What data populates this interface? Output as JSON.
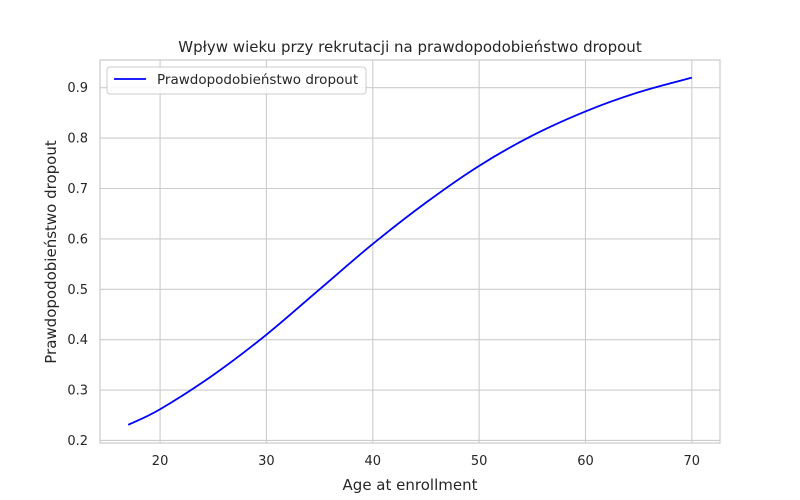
{
  "chart_data": {
    "type": "line",
    "title": "Wpływ wieku przy rekrutacji na prawdopodobieństwo dropout",
    "xlabel": "Age at enrollment",
    "ylabel": "Prawdopodobieństwo dropout",
    "xlim": [
      14.35,
      72.65
    ],
    "ylim": [
      0.195,
      0.955
    ],
    "xticks": [
      20,
      30,
      40,
      50,
      60,
      70
    ],
    "yticks": [
      0.2,
      0.3,
      0.4,
      0.5,
      0.6,
      0.7,
      0.8,
      0.9
    ],
    "grid": true,
    "legend_position": "upper-left",
    "series": [
      {
        "name": "Prawdopodobieństwo dropout",
        "color": "#0000ff",
        "x": [
          17,
          20,
          25,
          30,
          35,
          40,
          45,
          50,
          55,
          60,
          65,
          70
        ],
        "y": [
          0.231,
          0.262,
          0.33,
          0.41,
          0.5,
          0.59,
          0.672,
          0.745,
          0.805,
          0.853,
          0.891,
          0.92
        ]
      }
    ]
  }
}
